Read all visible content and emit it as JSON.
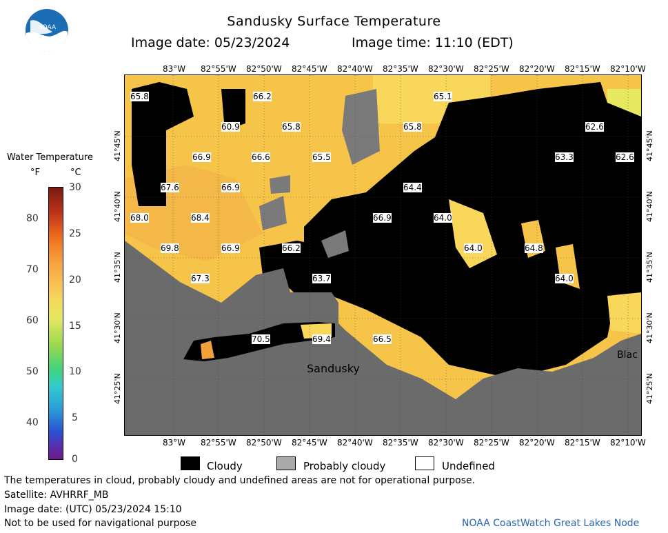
{
  "header": {
    "title": "Sandusky Surface Temperature",
    "image_date": "Image date: 05/23/2024",
    "image_time": "Image time: 11:10 (EDT)"
  },
  "logo": {
    "text": "NOAA"
  },
  "colorbar": {
    "title": "Water Temperature",
    "unit_f": "°F",
    "unit_c": "°C",
    "f_ticks": [
      "80",
      "70",
      "60",
      "50",
      "40"
    ],
    "c_ticks": [
      "30",
      "25",
      "20",
      "15",
      "10",
      "5",
      "0"
    ]
  },
  "lon_ticks": [
    "83°W",
    "82°55'W",
    "82°50'W",
    "82°45'W",
    "82°40'W",
    "82°35'W",
    "82°30'W",
    "82°25'W",
    "82°20'W",
    "82°15'W",
    "82°10'W"
  ],
  "lat_ticks": [
    "41°45'N",
    "41°40'N",
    "41°35'N",
    "41°30'N",
    "41°25'N"
  ],
  "temperature_labels": [
    "65.8",
    "66.2",
    "65.1",
    "60.9",
    "65.8",
    "65.8",
    "62.6",
    "66.9",
    "66.6",
    "65.5",
    "63.3",
    "62.6",
    "67.6",
    "66.9",
    "64.4",
    "68.0",
    "68.4",
    "66.9",
    "64.0",
    "69.8",
    "66.9",
    "66.2",
    "64.0",
    "64.8",
    "67.3",
    "63.7",
    "64.0",
    "70.5",
    "69.4",
    "66.5"
  ],
  "places": {
    "sandusky": "Sandusky",
    "blac": "Blac"
  },
  "key": {
    "cloudy": "Cloudy",
    "probably_cloudy": "Probably cloudy",
    "undefined": "Undefined"
  },
  "footer": {
    "note1": "The temperatures in cloud, probably cloudy and undefined areas are not for operational purpose.",
    "satellite": "Satellite: AVHRRF_MB",
    "image_date_utc": "Image date: (UTC) 05/23/2024  15:10",
    "nav_warning": "Not to be used for navigational purpose",
    "credit": "NOAA CoastWatch Great Lakes Node"
  },
  "colors": {
    "cloudy": "#000000",
    "probably_cloudy": "#aaaaaa",
    "undefined": "#ffffff",
    "land": "#6b6b6b",
    "water_warm": "#f7c44a",
    "water_mid": "#f9d75a",
    "water_cool": "#e6e860",
    "water_hot": "#f2a13a"
  }
}
